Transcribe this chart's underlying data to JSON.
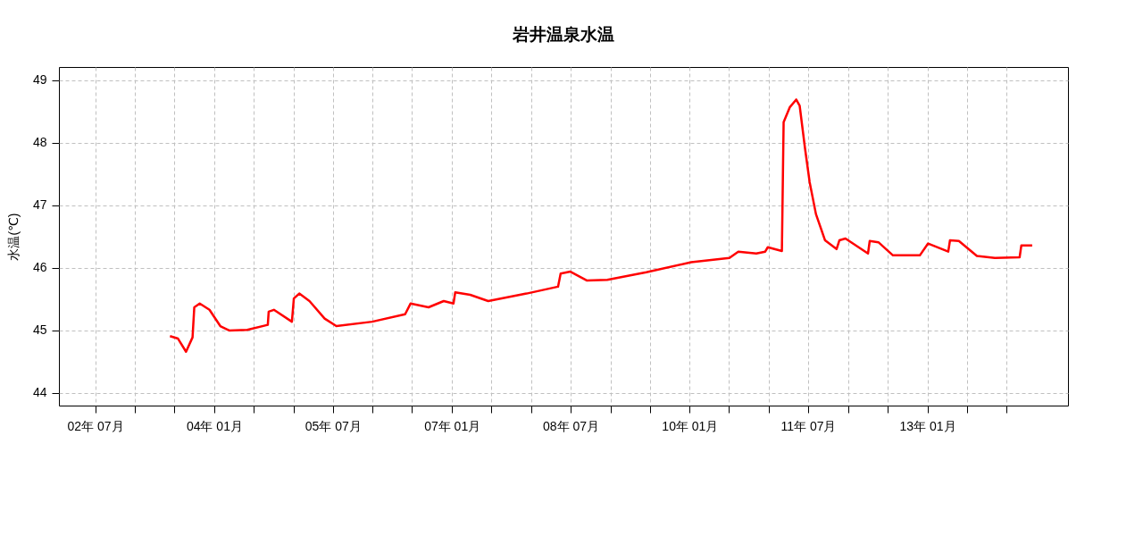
{
  "chart_data": {
    "type": "line",
    "title": "岩井温泉水温",
    "ylabel": "水温(℃)",
    "x": [
      "2003-06-11",
      "2003-07-18",
      "2003-08-24",
      "2003-09-23",
      "2003-10-01",
      "2003-10-26",
      "2003-12-10",
      "2004-01-29",
      "2004-03-10",
      "2004-06-01",
      "2004-09-04",
      "2004-09-08",
      "2004-10-02",
      "2004-12-24",
      "2005-01-02",
      "2005-01-27",
      "2005-03-15",
      "2005-05-24",
      "2005-07-17",
      "2005-12-29",
      "2006-05-30",
      "2006-06-24",
      "2006-09-15",
      "2006-11-24",
      "2007-01-08",
      "2007-01-16",
      "2007-03-26",
      "2007-06-17",
      "2007-12-11",
      "2008-05-04",
      "2008-05-16",
      "2008-06-30",
      "2008-09-13",
      "2008-12-17",
      "2009-06-15",
      "2010-01-08",
      "2010-07-03",
      "2010-08-13",
      "2010-11-04",
      "2010-12-15",
      "2010-12-27",
      "2011-03-02",
      "2011-03-10",
      "2011-04-08",
      "2011-05-07",
      "2011-05-23",
      "2011-06-17",
      "2011-07-08",
      "2011-08-06",
      "2011-09-17",
      "2011-11-09",
      "2011-11-22",
      "2011-12-20",
      "2012-04-02",
      "2012-04-10",
      "2012-05-20",
      "2012-07-26",
      "2012-11-27",
      "2013-01-04",
      "2013-04-07",
      "2013-04-15",
      "2013-05-26",
      "2013-08-17",
      "2013-11-08",
      "2014-03-02",
      "2014-03-10",
      "2014-04-29"
    ],
    "series": [
      {
        "color": "#ff0000",
        "values": [
          44.91,
          44.87,
          44.66,
          44.89,
          45.37,
          45.43,
          45.33,
          45.07,
          45.0,
          45.01,
          45.09,
          45.3,
          45.33,
          45.14,
          45.51,
          45.59,
          45.47,
          45.19,
          45.07,
          45.14,
          45.26,
          45.43,
          45.37,
          45.47,
          45.43,
          45.61,
          45.57,
          45.47,
          45.59,
          45.7,
          45.91,
          45.94,
          45.8,
          45.81,
          45.93,
          46.09,
          46.16,
          46.26,
          46.23,
          46.26,
          46.33,
          46.27,
          48.33,
          48.57,
          48.69,
          48.59,
          47.9,
          47.37,
          46.86,
          46.44,
          46.3,
          46.44,
          46.47,
          46.23,
          46.43,
          46.41,
          46.2,
          46.2,
          46.39,
          46.26,
          46.44,
          46.43,
          46.19,
          46.16,
          46.17,
          46.36,
          46.36
        ]
      }
    ],
    "xlim": [
      "2002-01-15",
      "2014-10-11"
    ],
    "xticks": [
      {
        "value": "2002-07-01",
        "label": "02年 07月"
      },
      {
        "value": "2003-01-01",
        "label": null
      },
      {
        "value": "2003-07-01",
        "label": null
      },
      {
        "value": "2004-01-01",
        "label": "04年 01月"
      },
      {
        "value": "2004-07-01",
        "label": null
      },
      {
        "value": "2005-01-01",
        "label": null
      },
      {
        "value": "2005-07-01",
        "label": "05年 07月"
      },
      {
        "value": "2006-01-01",
        "label": null
      },
      {
        "value": "2006-07-01",
        "label": null
      },
      {
        "value": "2007-01-01",
        "label": "07年 01月"
      },
      {
        "value": "2007-07-01",
        "label": null
      },
      {
        "value": "2008-01-01",
        "label": null
      },
      {
        "value": "2008-07-01",
        "label": "08年 07月"
      },
      {
        "value": "2009-01-01",
        "label": null
      },
      {
        "value": "2009-07-01",
        "label": null
      },
      {
        "value": "2010-01-01",
        "label": "10年 01月"
      },
      {
        "value": "2010-07-01",
        "label": null
      },
      {
        "value": "2011-01-01",
        "label": null
      },
      {
        "value": "2011-07-01",
        "label": "11年 07月"
      },
      {
        "value": "2012-01-01",
        "label": null
      },
      {
        "value": "2012-07-01",
        "label": null
      },
      {
        "value": "2013-01-01",
        "label": "13年 01月"
      },
      {
        "value": "2013-07-01",
        "label": null
      },
      {
        "value": "2014-01-01",
        "label": null
      }
    ],
    "ylim": [
      43.8,
      49.21
    ],
    "yticks": [
      44,
      45,
      46,
      47,
      48,
      49
    ],
    "grid": true,
    "line_style": "solid"
  }
}
